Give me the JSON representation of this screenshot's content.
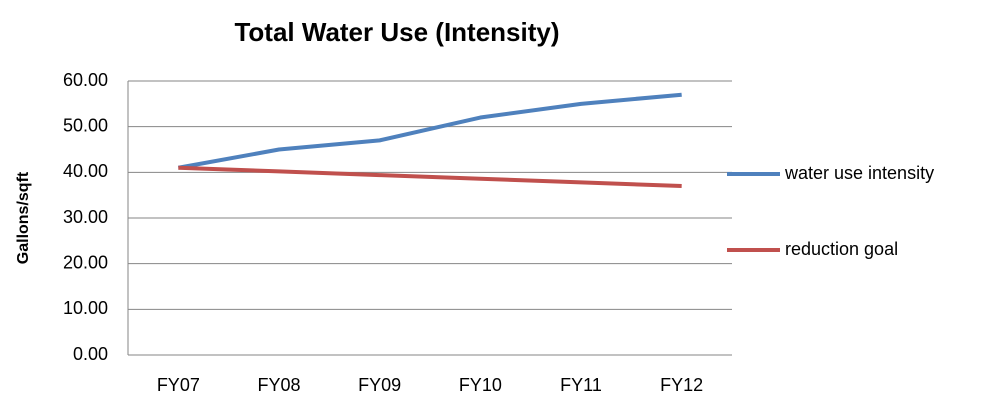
{
  "chart_data": {
    "type": "line",
    "title": "Total Water Use (Intensity)",
    "y_label": "Gallons/sqft",
    "categories": [
      "FY07",
      "FY08",
      "FY09",
      "FY10",
      "FY11",
      "FY12"
    ],
    "series": [
      {
        "name": "water use intensity",
        "color": "#4f81bd",
        "values": [
          41,
          45,
          47,
          52,
          55,
          57
        ]
      },
      {
        "name": "reduction goal",
        "color": "#c0504d",
        "values": [
          41,
          40.2,
          39.4,
          38.6,
          37.8,
          37
        ]
      }
    ],
    "ylim": [
      0,
      60
    ],
    "yticks": [
      {
        "value": 0,
        "label": "0.00"
      },
      {
        "value": 10,
        "label": "10.00"
      },
      {
        "value": 20,
        "label": "20.00"
      },
      {
        "value": 30,
        "label": "30.00"
      },
      {
        "value": 40,
        "label": "40.00"
      },
      {
        "value": 50,
        "label": "50.00"
      },
      {
        "value": 60,
        "label": "60.00"
      }
    ],
    "grid": true,
    "legend": "right"
  }
}
